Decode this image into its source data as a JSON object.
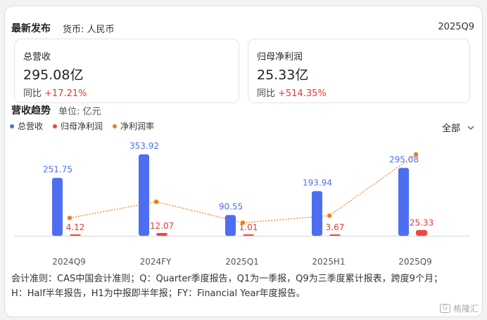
{
  "header": {
    "title": "最新发布",
    "currency": "货币: 人民币",
    "period": "2025Q9"
  },
  "stats": [
    {
      "label": "总营收",
      "value": "295.08亿",
      "yoy_label": "同比",
      "yoy_value": "+17.21%"
    },
    {
      "label": "归母净利润",
      "value": "25.33亿",
      "yoy_label": "同比",
      "yoy_value": "+514.35%"
    }
  ],
  "trend": {
    "title": "营收趋势",
    "unit": "单位: 亿元",
    "scope": "全部",
    "legend": [
      {
        "name": "总营收",
        "color": "#4e6ef2"
      },
      {
        "name": "归母净利润",
        "color": "#f0463c"
      },
      {
        "name": "净利润率",
        "color": "#f07d1a"
      }
    ]
  },
  "chart_data": {
    "type": "bar",
    "categories": [
      "2024Q9",
      "2024FY",
      "2025Q1",
      "2025H1",
      "2025Q9"
    ],
    "series": [
      {
        "name": "总营收",
        "values": [
          251.75,
          353.92,
          90.55,
          193.94,
          295.08
        ],
        "labels": [
          "251.75",
          "353.92",
          "90.55",
          "193.94",
          "295.08"
        ],
        "color": "#4e6ef2"
      },
      {
        "name": "归母净利润",
        "values": [
          4.12,
          12.07,
          1.01,
          3.67,
          25.33
        ],
        "labels": [
          "4.12",
          "12.07",
          "1.01",
          "3.67",
          "25.33"
        ],
        "color": "#f0463c"
      },
      {
        "name": "净利润率",
        "type": "line",
        "values": [
          1.64,
          3.41,
          1.12,
          1.89,
          8.58
        ],
        "color": "#f07d1a"
      }
    ],
    "ylim": [
      0,
      353.92
    ],
    "line_ylim": [
      0,
      8.58
    ]
  },
  "footnote": {
    "line1": "会计准则：CAS中国会计准则；Q：Quarter季度报告，Q1为一季报，Q9为三季度累计报表，跨度9个月；",
    "line2": "H：Half半年报告，H1为中报即半年报；FY：Financial Year年度报告。"
  },
  "watermark": "格隆汇"
}
